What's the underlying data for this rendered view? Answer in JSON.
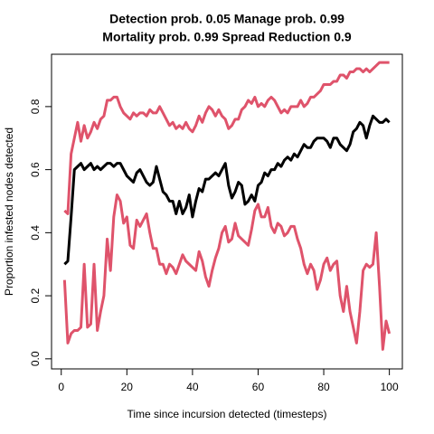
{
  "chart_data": {
    "type": "line",
    "title": "Detection prob. 0.05 Manage prob. 0.99",
    "subtitle": "Mortality prob. 0.99 Spread Reduction 0.9",
    "x_label": "Time since incursion detected (timesteps)",
    "y_label": "Proportion infested nodes detected",
    "x": [
      1,
      2,
      3,
      4,
      5,
      6,
      7,
      8,
      9,
      10,
      11,
      12,
      13,
      14,
      15,
      16,
      17,
      18,
      19,
      20,
      21,
      22,
      23,
      24,
      25,
      26,
      27,
      28,
      29,
      30,
      31,
      32,
      33,
      34,
      35,
      36,
      37,
      38,
      39,
      40,
      41,
      42,
      43,
      44,
      45,
      46,
      47,
      48,
      49,
      50,
      51,
      52,
      53,
      54,
      55,
      56,
      57,
      58,
      59,
      60,
      61,
      62,
      63,
      64,
      65,
      66,
      67,
      68,
      69,
      70,
      71,
      72,
      73,
      74,
      75,
      76,
      77,
      78,
      79,
      80,
      81,
      82,
      83,
      84,
      85,
      86,
      87,
      88,
      89,
      90,
      91,
      92,
      93,
      94,
      95,
      96,
      97,
      98,
      99,
      100
    ],
    "series": [
      {
        "color": "#DF536B",
        "values": [
          0.47,
          0.46,
          0.65,
          0.7,
          0.75,
          0.69,
          0.74,
          0.7,
          0.72,
          0.75,
          0.73,
          0.76,
          0.77,
          0.82,
          0.82,
          0.83,
          0.83,
          0.8,
          0.78,
          0.77,
          0.76,
          0.78,
          0.77,
          0.78,
          0.78,
          0.77,
          0.79,
          0.78,
          0.78,
          0.8,
          0.78,
          0.76,
          0.74,
          0.75,
          0.73,
          0.74,
          0.73,
          0.75,
          0.73,
          0.72,
          0.74,
          0.77,
          0.75,
          0.78,
          0.8,
          0.79,
          0.77,
          0.79,
          0.77,
          0.76,
          0.73,
          0.74,
          0.76,
          0.76,
          0.79,
          0.8,
          0.82,
          0.81,
          0.83,
          0.8,
          0.81,
          0.8,
          0.82,
          0.83,
          0.82,
          0.8,
          0.78,
          0.79,
          0.78,
          0.8,
          0.8,
          0.8,
          0.82,
          0.8,
          0.81,
          0.83,
          0.83,
          0.84,
          0.85,
          0.87,
          0.87,
          0.87,
          0.88,
          0.88,
          0.9,
          0.9,
          0.89,
          0.91,
          0.91,
          0.92,
          0.92,
          0.91,
          0.92,
          0.91,
          0.92,
          0.93,
          0.94,
          0.94,
          0.94,
          0.94
        ]
      },
      {
        "color": "#000000",
        "values": [
          0.3,
          0.31,
          0.45,
          0.6,
          0.61,
          0.62,
          0.6,
          0.61,
          0.62,
          0.6,
          0.61,
          0.6,
          0.61,
          0.62,
          0.62,
          0.61,
          0.62,
          0.62,
          0.6,
          0.58,
          0.57,
          0.56,
          0.59,
          0.6,
          0.58,
          0.56,
          0.55,
          0.56,
          0.61,
          0.57,
          0.53,
          0.52,
          0.5,
          0.5,
          0.46,
          0.5,
          0.46,
          0.48,
          0.52,
          0.45,
          0.5,
          0.54,
          0.53,
          0.57,
          0.57,
          0.58,
          0.59,
          0.58,
          0.6,
          0.62,
          0.55,
          0.51,
          0.53,
          0.56,
          0.55,
          0.49,
          0.5,
          0.52,
          0.5,
          0.55,
          0.56,
          0.59,
          0.58,
          0.6,
          0.6,
          0.62,
          0.61,
          0.63,
          0.64,
          0.63,
          0.65,
          0.64,
          0.66,
          0.68,
          0.67,
          0.67,
          0.69,
          0.7,
          0.7,
          0.7,
          0.69,
          0.67,
          0.7,
          0.7,
          0.68,
          0.67,
          0.66,
          0.68,
          0.72,
          0.73,
          0.75,
          0.74,
          0.7,
          0.74,
          0.77,
          0.76,
          0.75,
          0.75,
          0.76,
          0.75
        ]
      },
      {
        "color": "#DF536B",
        "values": [
          0.25,
          0.05,
          0.08,
          0.09,
          0.09,
          0.1,
          0.3,
          0.1,
          0.11,
          0.3,
          0.09,
          0.15,
          0.2,
          0.38,
          0.28,
          0.45,
          0.52,
          0.5,
          0.43,
          0.45,
          0.36,
          0.35,
          0.44,
          0.42,
          0.44,
          0.46,
          0.4,
          0.35,
          0.35,
          0.3,
          0.3,
          0.27,
          0.3,
          0.29,
          0.27,
          0.3,
          0.33,
          0.31,
          0.3,
          0.29,
          0.28,
          0.34,
          0.31,
          0.26,
          0.23,
          0.28,
          0.32,
          0.35,
          0.4,
          0.42,
          0.37,
          0.38,
          0.43,
          0.39,
          0.38,
          0.37,
          0.36,
          0.41,
          0.47,
          0.49,
          0.45,
          0.45,
          0.48,
          0.42,
          0.4,
          0.43,
          0.42,
          0.39,
          0.4,
          0.42,
          0.42,
          0.38,
          0.35,
          0.3,
          0.27,
          0.3,
          0.28,
          0.22,
          0.25,
          0.3,
          0.32,
          0.28,
          0.3,
          0.31,
          0.2,
          0.15,
          0.23,
          0.15,
          0.1,
          0.05,
          0.15,
          0.28,
          0.3,
          0.29,
          0.3,
          0.4,
          0.23,
          0.03,
          0.12,
          0.08
        ]
      }
    ],
    "xlim": [
      -2.96,
      103.96
    ],
    "xticks": [
      0,
      20,
      40,
      60,
      80,
      100
    ],
    "ylim": [
      -0.032,
      0.966
    ],
    "yticks": [
      {
        "value": 0,
        "label": "0.0"
      },
      0.2,
      0.4,
      0.6,
      0.8
    ]
  }
}
